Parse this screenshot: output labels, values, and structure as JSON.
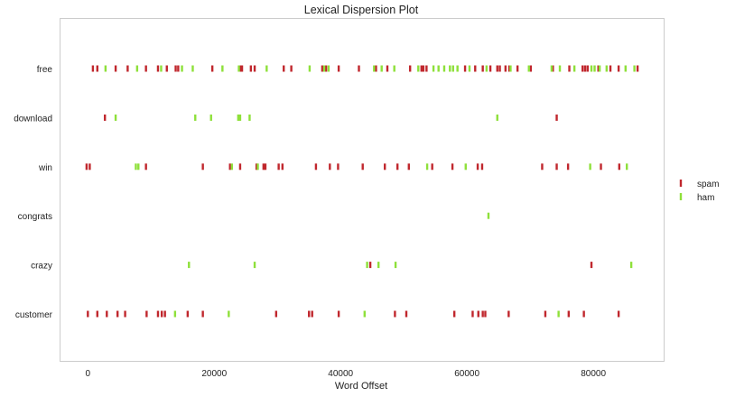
{
  "chart_data": {
    "type": "scatter",
    "title": "Lexical Dispersion Plot",
    "xlabel": "Word Offset",
    "ylabel": "",
    "xlim": [
      -4400,
      91200
    ],
    "xticks": [
      0,
      20000,
      40000,
      60000,
      80000
    ],
    "xtick_labels": [
      "0",
      "20000",
      "40000",
      "60000",
      "80000"
    ],
    "grid": false,
    "legend_position": "right",
    "words": [
      "free",
      "download",
      "win",
      "congrats",
      "crazy",
      "customer"
    ],
    "series": [
      {
        "name": "spam",
        "color": "#c0272d",
        "points": [
          {
            "word": "free",
            "offsets": [
              800,
              1500,
              4400,
              6300,
              9200,
              11100,
              12500,
              13900,
              14300,
              19700,
              24100,
              24400,
              25800,
              26400,
              31000,
              32200,
              37100,
              37700,
              39700,
              42900,
              45600,
              47400,
              51000,
              52800,
              53100,
              53600,
              59700,
              61300,
              62500,
              63700,
              64800,
              65200,
              66100,
              66700,
              68000,
              70100,
              73600,
              76200,
              78300,
              78700,
              79100,
              80800,
              82700,
              84000,
              87000
            ]
          },
          {
            "word": "download",
            "offsets": [
              2700,
              74200
            ]
          },
          {
            "word": "win",
            "offsets": [
              -200,
              300,
              9200,
              18200,
              22500,
              24100,
              26700,
              27800,
              28100,
              30200,
              30800,
              36100,
              38300,
              39600,
              43500,
              47000,
              49000,
              50800,
              54500,
              57700,
              61700,
              62400,
              71900,
              74200,
              76000,
              81200,
              84100
            ]
          },
          {
            "word": "customer",
            "offsets": [
              0,
              1500,
              3000,
              4700,
              5900,
              9300,
              11100,
              11700,
              12200,
              15800,
              18200,
              29800,
              35000,
              35500,
              39700,
              48600,
              50400,
              58000,
              60900,
              61800,
              62500,
              62900,
              66600,
              72400,
              76100,
              78500,
              84000
            ]
          },
          {
            "word": "crazy",
            "offsets": [
              44700,
              79700
            ]
          }
        ]
      },
      {
        "name": "ham",
        "color": "#8ee03a",
        "points": [
          {
            "word": "free",
            "offsets": [
              2800,
              7800,
              11600,
              14900,
              16600,
              21300,
              23900,
              28300,
              35100,
              37400,
              38100,
              45300,
              46500,
              48500,
              52300,
              54700,
              55500,
              56400,
              57300,
              57800,
              58500,
              60400,
              63100,
              66900,
              69800,
              73400,
              74700,
              77000,
              79700,
              80200,
              81000,
              82100,
              85100,
              86500
            ]
          },
          {
            "word": "download",
            "offsets": [
              4400,
              17000,
              19500,
              23800,
              24100,
              25600,
              64800
            ]
          },
          {
            "word": "win",
            "offsets": [
              7600,
              8000,
              22800,
              26900,
              53700,
              59800,
              79500,
              85300
            ]
          },
          {
            "word": "congrats",
            "offsets": [
              63400
            ]
          },
          {
            "word": "crazy",
            "offsets": [
              16000,
              26400,
              44200,
              46000,
              48700,
              86000
            ]
          },
          {
            "word": "customer",
            "offsets": [
              13800,
              22300,
              43800,
              74500
            ]
          }
        ]
      }
    ]
  }
}
